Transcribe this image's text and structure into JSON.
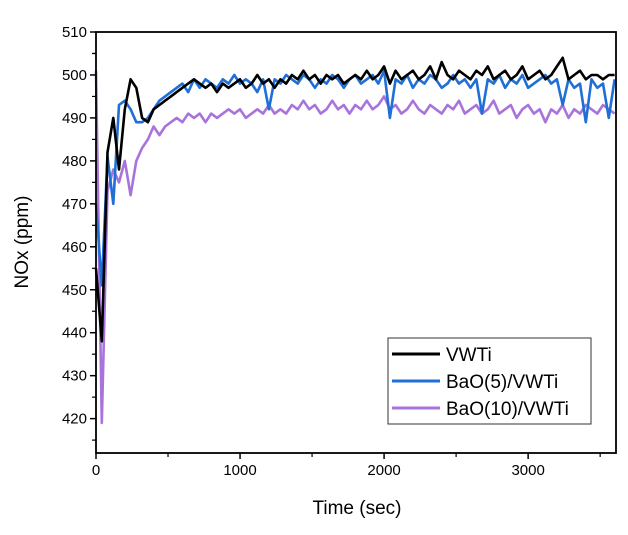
{
  "chart_data": {
    "type": "line",
    "title": "",
    "xlabel": "Time (sec)",
    "ylabel": "NOx (ppm)",
    "xlim": [
      0,
      3610
    ],
    "ylim": [
      412,
      510
    ],
    "xticks": [
      0,
      1000,
      2000,
      3000
    ],
    "yticks": [
      420,
      430,
      440,
      450,
      460,
      470,
      480,
      490,
      500,
      510
    ],
    "grid": false,
    "legend_position": "bottom-right",
    "x": [
      0,
      40,
      80,
      120,
      160,
      200,
      240,
      280,
      320,
      360,
      400,
      440,
      480,
      520,
      560,
      600,
      640,
      680,
      720,
      760,
      800,
      840,
      880,
      920,
      960,
      1000,
      1040,
      1080,
      1120,
      1160,
      1200,
      1240,
      1280,
      1320,
      1360,
      1400,
      1440,
      1480,
      1520,
      1560,
      1600,
      1640,
      1680,
      1720,
      1760,
      1800,
      1840,
      1880,
      1920,
      1960,
      2000,
      2040,
      2080,
      2120,
      2160,
      2200,
      2240,
      2280,
      2320,
      2360,
      2400,
      2440,
      2480,
      2520,
      2560,
      2600,
      2640,
      2680,
      2720,
      2760,
      2800,
      2840,
      2880,
      2920,
      2960,
      3000,
      3040,
      3080,
      3120,
      3160,
      3200,
      3240,
      3280,
      3320,
      3360,
      3400,
      3440,
      3480,
      3520,
      3560,
      3600
    ],
    "series": [
      {
        "name": "VWTi",
        "color": "#000000",
        "values": [
          455,
          438,
          482,
          490,
          478,
          492,
          499,
          497,
          490,
          489,
          492,
          493,
          494,
          495,
          496,
          497,
          498,
          499,
          498,
          497,
          498,
          496,
          498,
          497,
          498,
          499,
          497,
          498,
          500,
          498,
          499,
          497,
          499,
          498,
          500,
          499,
          501,
          499,
          500,
          498,
          500,
          499,
          500,
          498,
          499,
          500,
          499,
          501,
          499,
          500,
          502,
          498,
          501,
          499,
          500,
          501,
          499,
          500,
          502,
          499,
          503,
          500,
          499,
          501,
          500,
          499,
          501,
          500,
          502,
          499,
          500,
          501,
          499,
          500,
          502,
          499,
          500,
          501,
          499,
          500,
          502,
          504,
          499,
          500,
          501,
          499,
          500,
          500,
          499,
          500,
          500
        ]
      },
      {
        "name": "BaO(5)/VWTi",
        "color": "#1f6fd6",
        "values": [
          470,
          451,
          481,
          470,
          493,
          494,
          492,
          489,
          489,
          490,
          492,
          494,
          495,
          496,
          497,
          498,
          496,
          499,
          497,
          499,
          498,
          497,
          499,
          498,
          500,
          498,
          499,
          498,
          496,
          499,
          492,
          499,
          498,
          500,
          499,
          498,
          500,
          499,
          497,
          499,
          498,
          500,
          499,
          497,
          499,
          500,
          498,
          499,
          500,
          498,
          501,
          490,
          499,
          498,
          500,
          497,
          499,
          498,
          500,
          499,
          497,
          498,
          500,
          498,
          499,
          497,
          499,
          491,
          499,
          498,
          500,
          497,
          499,
          498,
          500,
          497,
          498,
          499,
          500,
          498,
          499,
          493,
          499,
          497,
          498,
          489,
          499,
          497,
          498,
          490,
          499
        ]
      },
      {
        "name": "BaO(10)/VWTi",
        "color": "#a874db",
        "values": [
          501,
          419,
          473,
          478,
          475,
          480,
          472,
          480,
          483,
          485,
          488,
          486,
          488,
          489,
          490,
          489,
          491,
          490,
          491,
          489,
          491,
          490,
          491,
          492,
          491,
          492,
          490,
          491,
          492,
          491,
          493,
          491,
          492,
          491,
          493,
          492,
          494,
          492,
          493,
          491,
          492,
          494,
          492,
          493,
          491,
          493,
          492,
          494,
          492,
          493,
          495,
          492,
          493,
          491,
          492,
          494,
          492,
          491,
          493,
          492,
          491,
          493,
          492,
          494,
          491,
          492,
          493,
          491,
          492,
          494,
          491,
          492,
          493,
          490,
          492,
          493,
          491,
          492,
          489,
          492,
          491,
          493,
          490,
          492,
          491,
          493,
          492,
          491,
          493,
          492,
          491
        ]
      }
    ]
  }
}
